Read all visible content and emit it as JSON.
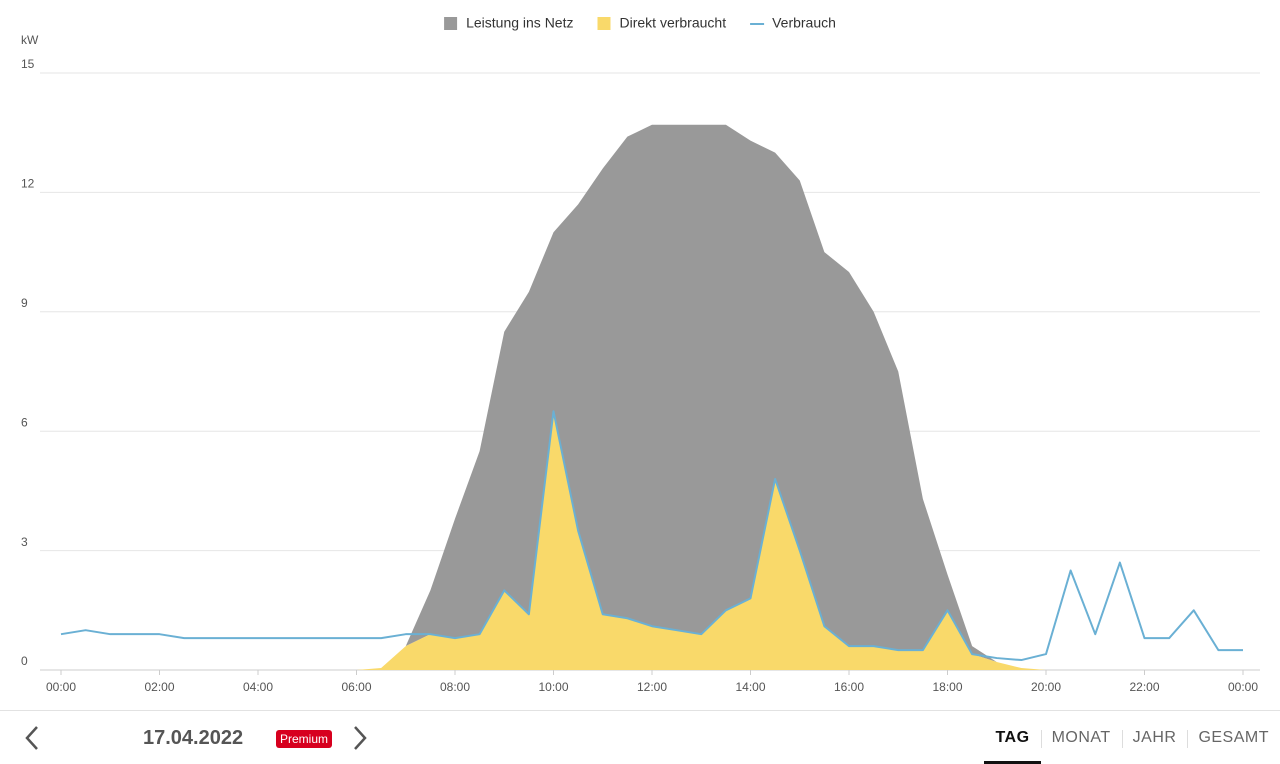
{
  "chart_data": {
    "type": "area",
    "stacked": true,
    "unit_label": "kW",
    "x": [
      0,
      0.5,
      1,
      1.5,
      2,
      2.5,
      3,
      3.5,
      4,
      4.5,
      5,
      5.5,
      6,
      6.5,
      7,
      7.5,
      8,
      8.5,
      9,
      9.5,
      10,
      10.5,
      11,
      11.5,
      12,
      12.5,
      13,
      13.5,
      14,
      14.5,
      15,
      15.5,
      16,
      16.5,
      17,
      17.5,
      18,
      18.5,
      19,
      19.5,
      20,
      20.5,
      21,
      21.5,
      22,
      22.5,
      23,
      23.5,
      24
    ],
    "xlim": [
      0,
      24
    ],
    "xticks": [
      {
        "value": 0,
        "label": "00:00"
      },
      {
        "value": 2,
        "label": "02:00"
      },
      {
        "value": 4,
        "label": "04:00"
      },
      {
        "value": 6,
        "label": "06:00"
      },
      {
        "value": 8,
        "label": "08:00"
      },
      {
        "value": 10,
        "label": "10:00"
      },
      {
        "value": 12,
        "label": "12:00"
      },
      {
        "value": 14,
        "label": "14:00"
      },
      {
        "value": 16,
        "label": "16:00"
      },
      {
        "value": 18,
        "label": "18:00"
      },
      {
        "value": 20,
        "label": "20:00"
      },
      {
        "value": 22,
        "label": "22:00"
      },
      {
        "value": 24,
        "label": "00:00"
      }
    ],
    "ylim": [
      0,
      15
    ],
    "yticks": [
      0,
      3,
      6,
      9,
      12,
      15
    ],
    "grid": true,
    "series": [
      {
        "name": "Leistung ins Netz",
        "color": "#999999",
        "kind": "area",
        "values": [
          0,
          0,
          0,
          0,
          0,
          0,
          0,
          0,
          0,
          0,
          0,
          0,
          0,
          0,
          0,
          1.1,
          3.0,
          4.6,
          6.5,
          8.1,
          4.5,
          8.2,
          11.2,
          12.1,
          12.6,
          12.7,
          12.8,
          12.2,
          11.5,
          8.2,
          9.3,
          9.4,
          9.4,
          8.4,
          7.0,
          3.8,
          0.9,
          0.2,
          0,
          0,
          0,
          0,
          0,
          0,
          0,
          0,
          0,
          0,
          0
        ]
      },
      {
        "name": "Direkt verbraucht",
        "color": "#f9d96a",
        "kind": "area",
        "values": [
          0,
          0,
          0,
          0,
          0,
          0,
          0,
          0,
          0,
          0,
          0,
          0,
          0,
          0.05,
          0.6,
          0.9,
          0.8,
          0.9,
          2.0,
          1.4,
          6.5,
          3.5,
          1.4,
          1.3,
          1.1,
          1.0,
          0.9,
          1.5,
          1.8,
          4.8,
          3.0,
          1.1,
          0.6,
          0.6,
          0.5,
          0.5,
          1.5,
          0.4,
          0.2,
          0.05,
          0,
          0,
          0,
          0,
          0,
          0,
          0,
          0,
          0
        ]
      },
      {
        "name": "Verbrauch",
        "color": "#6ab0d4",
        "kind": "line",
        "values": [
          0.9,
          1.0,
          0.9,
          0.9,
          0.9,
          0.8,
          0.8,
          0.8,
          0.8,
          0.8,
          0.8,
          0.8,
          0.8,
          0.8,
          0.9,
          0.9,
          0.8,
          0.9,
          2.0,
          1.4,
          6.5,
          3.5,
          1.4,
          1.3,
          1.1,
          1.0,
          0.9,
          1.5,
          1.8,
          4.8,
          3.0,
          1.1,
          0.6,
          0.6,
          0.5,
          0.5,
          1.5,
          0.4,
          0.3,
          0.25,
          0.4,
          2.5,
          0.9,
          2.7,
          0.8,
          0.8,
          1.5,
          0.5,
          0.5
        ]
      }
    ]
  },
  "ui": {
    "date": "17.04.2022",
    "badge": "Premium",
    "tabs": [
      "TAG",
      "MONAT",
      "JAHR",
      "GESAMT"
    ],
    "active_tab": 0
  }
}
